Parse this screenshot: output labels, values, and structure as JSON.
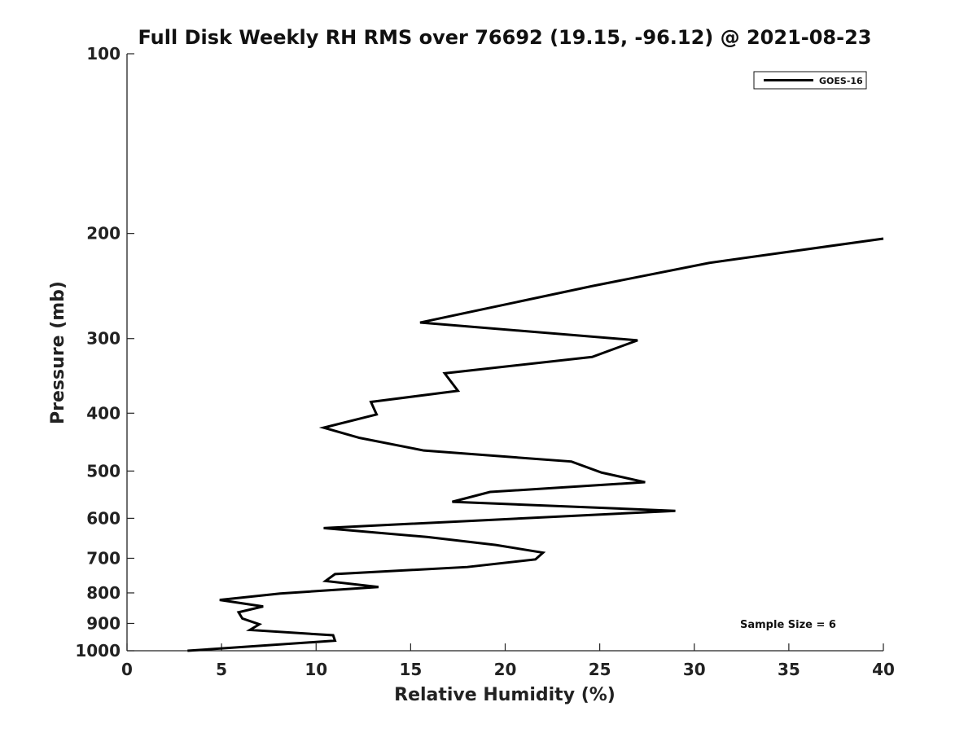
{
  "chart_data": {
    "type": "line",
    "title": "Full Disk Weekly RH RMS over 76692 (19.15, -96.12) @ 2021-08-23",
    "xlabel": "Relative Humidity (%)",
    "ylabel": "Pressure (mb)",
    "xlim": [
      0,
      40
    ],
    "ylim": [
      100,
      1000
    ],
    "y_scale": "log",
    "y_reversed": true,
    "x_ticks": [
      0,
      5,
      10,
      15,
      20,
      25,
      30,
      35,
      40
    ],
    "x_tick_labels": [
      "0",
      "5",
      "10",
      "15",
      "20",
      "25",
      "30",
      "35",
      "40"
    ],
    "y_ticks": [
      100,
      200,
      300,
      400,
      500,
      600,
      700,
      800,
      900,
      1000
    ],
    "y_tick_labels": [
      "100",
      "200",
      "300",
      "400",
      "500",
      "600",
      "700",
      "800",
      "900",
      "1000"
    ],
    "grid": false,
    "legend": {
      "placement": "top-right",
      "entries": [
        "GOES-16"
      ]
    },
    "annotation": "Sample Size = 6",
    "series": [
      {
        "name": "GOES-16",
        "color": "#000000",
        "points": [
          {
            "x": 40.0,
            "y": 204
          },
          {
            "x": 30.8,
            "y": 224
          },
          {
            "x": 24.6,
            "y": 245
          },
          {
            "x": 15.5,
            "y": 282
          },
          {
            "x": 27.0,
            "y": 302
          },
          {
            "x": 24.6,
            "y": 322
          },
          {
            "x": 16.8,
            "y": 343
          },
          {
            "x": 17.5,
            "y": 367
          },
          {
            "x": 12.9,
            "y": 383
          },
          {
            "x": 13.2,
            "y": 402
          },
          {
            "x": 10.4,
            "y": 423
          },
          {
            "x": 12.3,
            "y": 440
          },
          {
            "x": 15.7,
            "y": 462
          },
          {
            "x": 23.5,
            "y": 482
          },
          {
            "x": 25.1,
            "y": 503
          },
          {
            "x": 27.4,
            "y": 522
          },
          {
            "x": 19.2,
            "y": 542
          },
          {
            "x": 17.2,
            "y": 563
          },
          {
            "x": 29.0,
            "y": 583
          },
          {
            "x": 10.4,
            "y": 623
          },
          {
            "x": 15.9,
            "y": 645
          },
          {
            "x": 19.5,
            "y": 665
          },
          {
            "x": 22.0,
            "y": 685
          },
          {
            "x": 21.6,
            "y": 703
          },
          {
            "x": 18.0,
            "y": 724
          },
          {
            "x": 11.0,
            "y": 744
          },
          {
            "x": 10.5,
            "y": 764
          },
          {
            "x": 13.3,
            "y": 782
          },
          {
            "x": 8.1,
            "y": 802
          },
          {
            "x": 4.9,
            "y": 822
          },
          {
            "x": 7.2,
            "y": 843
          },
          {
            "x": 5.9,
            "y": 862
          },
          {
            "x": 6.1,
            "y": 883
          },
          {
            "x": 7.0,
            "y": 903
          },
          {
            "x": 6.5,
            "y": 923
          },
          {
            "x": 10.9,
            "y": 942
          },
          {
            "x": 11.0,
            "y": 962
          },
          {
            "x": 3.2,
            "y": 1000
          }
        ]
      }
    ]
  }
}
